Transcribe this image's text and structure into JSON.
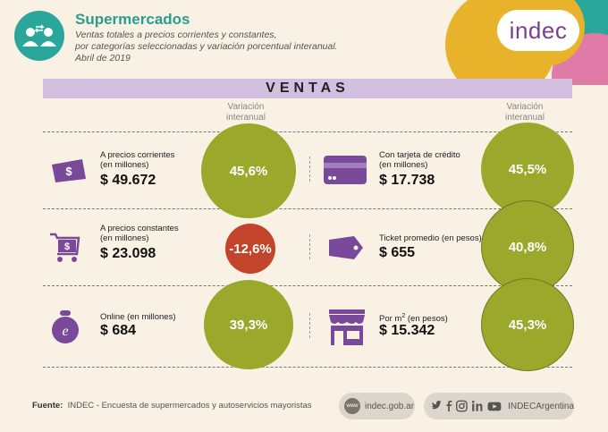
{
  "header": {
    "title": "Supermercados",
    "subtitle_lines": [
      "Ventas totales a precios corrientes y constantes,",
      "por categorías seleccionadas y variación porcentual interanual.",
      "Abril de 2019"
    ],
    "brand": "indec"
  },
  "banner": {
    "label": "VENTAS"
  },
  "variation_header": [
    "Variación",
    "interanual"
  ],
  "left": [
    {
      "label_lines": [
        "A precios corrientes",
        "(en millones)"
      ],
      "value": "$ 49.672",
      "variation": "45,6%",
      "icon": "money-bill-icon",
      "status": "positive"
    },
    {
      "label_lines": [
        "A precios constantes",
        "(en millones)"
      ],
      "value": "$ 23.098",
      "variation": "-12,6%",
      "icon": "shopping-cart-icon",
      "status": "negative"
    },
    {
      "label_lines": [
        "Online (en millones)",
        ""
      ],
      "value": "$ 684",
      "variation": "39,3%",
      "icon": "online-bag-icon",
      "status": "positive"
    }
  ],
  "right": [
    {
      "label_lines": [
        "Con tarjeta de crédito",
        "(en millones)"
      ],
      "value": "$ 17.738",
      "variation": "45,5%",
      "icon": "credit-card-icon",
      "status": "positive"
    },
    {
      "label_lines": [
        "Ticket promedio (en pesos)",
        ""
      ],
      "value": "$ 655",
      "variation": "40,8%",
      "icon": "price-tag-icon",
      "status": "positive"
    },
    {
      "label_prefix": "Por m",
      "label_sup": "2",
      "label_suffix": " (en pesos)",
      "value": "$ 15.342",
      "variation": "45,3%",
      "icon": "storefront-icon",
      "status": "positive"
    }
  ],
  "colors": {
    "positive": "#9aa82c",
    "negative": "#c2442a",
    "icons": "#7a4a9a",
    "teal": "#2a9d8f"
  },
  "footer": {
    "source_label": "Fuente:",
    "source_text": "INDEC - Encuesta de supermercados y autoservicios mayoristas",
    "www_badge": "www",
    "website": "indec.gob.ar",
    "social_handle": "INDECArgentina",
    "social_icons": [
      "twitter-icon",
      "facebook-icon",
      "instagram-icon",
      "linkedin-icon",
      "youtube-icon"
    ]
  }
}
